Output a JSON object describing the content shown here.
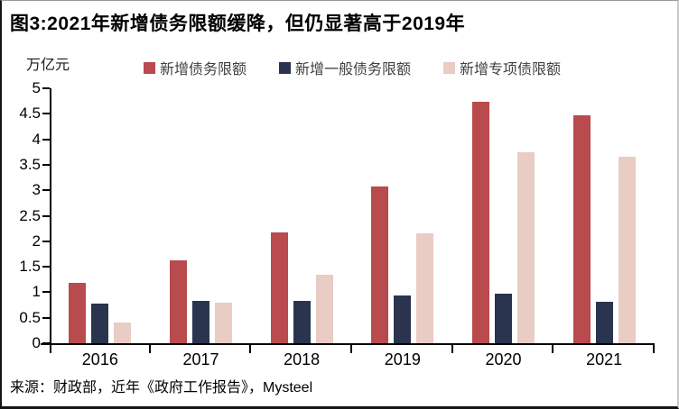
{
  "title": "图3:2021年新增债务限额缓降，但仍显著高于2019年",
  "source": "来源：财政部，近年《政府工作报告》，Mysteel",
  "chart_data": {
    "type": "bar",
    "title": "图3:2021年新增债务限额缓降，但仍显著高于2019年",
    "unit_label": "万亿元",
    "categories": [
      "2016",
      "2017",
      "2018",
      "2019",
      "2020",
      "2021"
    ],
    "series": [
      {
        "name": "新增债务限额",
        "color": "#b94a4d",
        "values": [
          1.18,
          1.63,
          2.18,
          3.08,
          4.73,
          4.47
        ]
      },
      {
        "name": "新增一般债务限额",
        "color": "#2a344e",
        "values": [
          0.78,
          0.83,
          0.83,
          0.93,
          0.98,
          0.82
        ]
      },
      {
        "name": "新增专项债限额",
        "color": "#e9ccc3",
        "values": [
          0.4,
          0.8,
          1.35,
          2.15,
          3.75,
          3.65
        ]
      }
    ],
    "ylim": [
      0,
      5
    ],
    "ytick_step": 0.5,
    "ytick_labels": [
      "0",
      "0.5",
      "1",
      "1.5",
      "2",
      "2.5",
      "3",
      "3.5",
      "4",
      "4.5",
      "5"
    ],
    "grid": false,
    "legend_position": "top",
    "axis_color": "#000000",
    "legend_text_color": "#404040"
  }
}
